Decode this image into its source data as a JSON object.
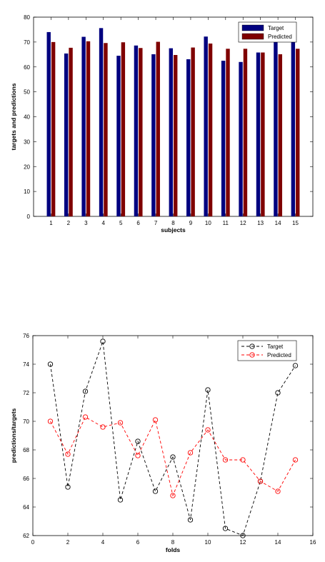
{
  "chart_data": [
    {
      "type": "bar",
      "title": "",
      "xlabel": "subjects",
      "ylabel": "targets and predictions",
      "categories": [
        "1",
        "2",
        "3",
        "4",
        "5",
        "6",
        "7",
        "8",
        "9",
        "10",
        "11",
        "12",
        "13",
        "14",
        "15"
      ],
      "series": [
        {
          "name": "Target",
          "color": "#00007f",
          "values": [
            74.0,
            65.4,
            72.1,
            75.6,
            64.5,
            68.6,
            65.1,
            67.5,
            63.1,
            72.2,
            62.5,
            62.0,
            65.8,
            72.0,
            73.9
          ]
        },
        {
          "name": "Predicted",
          "color": "#7f0000",
          "values": [
            70.0,
            67.7,
            70.3,
            69.6,
            69.9,
            67.6,
            70.1,
            64.8,
            67.8,
            69.4,
            67.3,
            67.3,
            65.8,
            65.1,
            67.3
          ]
        }
      ],
      "ylim": [
        0,
        80
      ],
      "yticks": [
        0,
        10,
        20,
        30,
        40,
        50,
        60,
        70,
        80
      ],
      "legend": "top-right",
      "grid": false
    },
    {
      "type": "line",
      "title": "",
      "xlabel": "folds",
      "ylabel": "predictions/targets",
      "x": [
        1,
        2,
        3,
        4,
        5,
        6,
        7,
        8,
        9,
        10,
        11,
        12,
        13,
        14,
        15
      ],
      "series": [
        {
          "name": "Target",
          "color": "#000000",
          "marker": "o",
          "linestyle": "dashed",
          "values": [
            74.0,
            65.4,
            72.1,
            75.6,
            64.5,
            68.6,
            65.1,
            67.5,
            63.1,
            72.2,
            62.5,
            62.0,
            65.8,
            72.0,
            73.9
          ]
        },
        {
          "name": "Predicted",
          "color": "#ff0000",
          "marker": "o",
          "linestyle": "dashed",
          "values": [
            70.0,
            67.7,
            70.3,
            69.6,
            69.9,
            67.6,
            70.1,
            64.8,
            67.8,
            69.4,
            67.3,
            67.3,
            65.8,
            65.1,
            67.3
          ]
        }
      ],
      "xlim": [
        0,
        16
      ],
      "xticks": [
        0,
        2,
        4,
        6,
        8,
        10,
        12,
        14,
        16
      ],
      "ylim": [
        62,
        76
      ],
      "yticks": [
        62,
        64,
        66,
        68,
        70,
        72,
        74,
        76
      ],
      "legend": "top-right",
      "grid": false
    }
  ]
}
